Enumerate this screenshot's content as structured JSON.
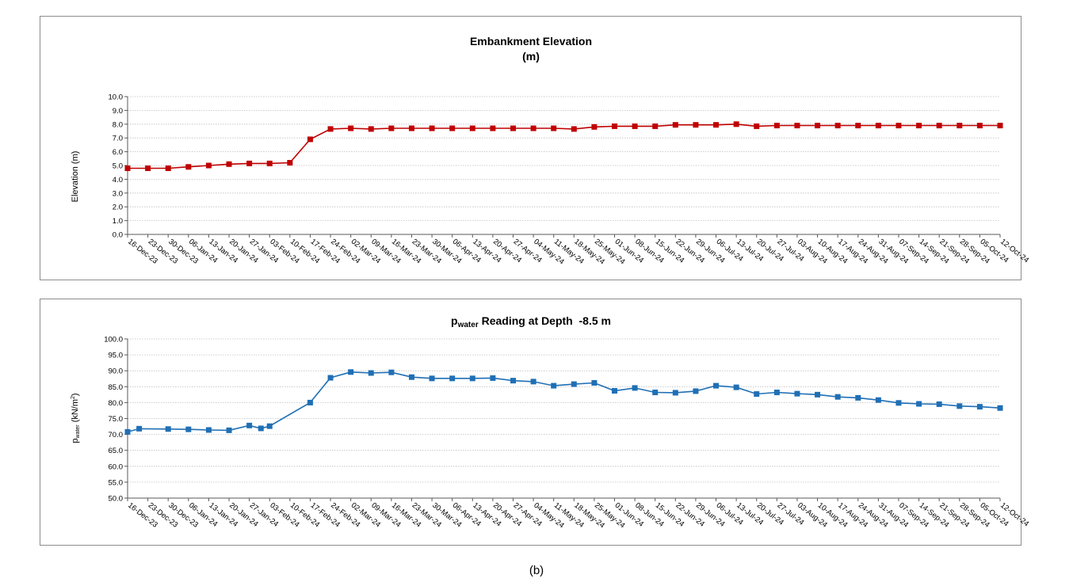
{
  "caption": "(b)",
  "colors": {
    "elevation": "#c00000",
    "pwater": "#1f6fb5",
    "grid": "#bfbfbf",
    "axis": "#595959"
  },
  "chart_data": [
    {
      "type": "line",
      "title_line1": "Embankment Elevation",
      "title_line2": "(m)",
      "ylabel": "Elevation (m)",
      "xlabel": "",
      "ylim": [
        0,
        10
      ],
      "ystep": 1,
      "ydecimals": 1,
      "grid": "horizontal dotted",
      "marker": "square",
      "categories": [
        "16-Dec-23",
        "23-Dec-23",
        "30-Dec-23",
        "06-Jan-24",
        "13-Jan-24",
        "20-Jan-24",
        "27-Jan-24",
        "03-Feb-24",
        "10-Feb-24",
        "17-Feb-24",
        "24-Feb-24",
        "02-Mar-24",
        "09-Mar-24",
        "16-Mar-24",
        "23-Mar-24",
        "30-Mar-24",
        "06-Apr-24",
        "13-Apr-24",
        "20-Apr-24",
        "27-Apr-24",
        "04-May-24",
        "11-May-24",
        "18-May-24",
        "25-May-24",
        "01-Jun-24",
        "08-Jun-24",
        "15-Jun-24",
        "22-Jun-24",
        "29-Jun-24",
        "06-Jul-24",
        "13-Jul-24",
        "20-Jul-24",
        "27-Jul-24",
        "03-Aug-24",
        "10-Aug-24",
        "17-Aug-24",
        "24-Aug-24",
        "31-Aug-24",
        "07-Sep-24",
        "14-Sep-24",
        "21-Sep-24",
        "28-Sep-24",
        "05-Oct-24",
        "12-Oct-24"
      ],
      "points": [
        {
          "x": "16-Dec-23",
          "y": 4.8
        },
        {
          "x": "23-Dec-23",
          "y": 4.8
        },
        {
          "x": "30-Dec-23",
          "y": 4.8
        },
        {
          "x": "06-Jan-24",
          "y": 4.9
        },
        {
          "x": "13-Jan-24",
          "y": 5.0
        },
        {
          "x": "20-Jan-24",
          "y": 5.1
        },
        {
          "x": "27-Jan-24",
          "y": 5.15
        },
        {
          "x": "03-Feb-24",
          "y": 5.15
        },
        {
          "x": "10-Feb-24",
          "y": 5.2
        },
        {
          "x": "17-Feb-24",
          "y": 6.9
        },
        {
          "x": "24-Feb-24",
          "y": 7.65
        },
        {
          "x": "02-Mar-24",
          "y": 7.7
        },
        {
          "x": "09-Mar-24",
          "y": 7.65
        },
        {
          "x": "16-Mar-24",
          "y": 7.7
        },
        {
          "x": "23-Mar-24",
          "y": 7.7
        },
        {
          "x": "30-Mar-24",
          "y": 7.7
        },
        {
          "x": "06-Apr-24",
          "y": 7.7
        },
        {
          "x": "13-Apr-24",
          "y": 7.7
        },
        {
          "x": "20-Apr-24",
          "y": 7.7
        },
        {
          "x": "27-Apr-24",
          "y": 7.7
        },
        {
          "x": "04-May-24",
          "y": 7.7
        },
        {
          "x": "11-May-24",
          "y": 7.7
        },
        {
          "x": "18-May-24",
          "y": 7.65
        },
        {
          "x": "25-May-24",
          "y": 7.8
        },
        {
          "x": "01-Jun-24",
          "y": 7.85
        },
        {
          "x": "08-Jun-24",
          "y": 7.85
        },
        {
          "x": "15-Jun-24",
          "y": 7.85
        },
        {
          "x": "22-Jun-24",
          "y": 7.95
        },
        {
          "x": "29-Jun-24",
          "y": 7.95
        },
        {
          "x": "06-Jul-24",
          "y": 7.95
        },
        {
          "x": "13-Jul-24",
          "y": 8.0
        },
        {
          "x": "20-Jul-24",
          "y": 7.85
        },
        {
          "x": "27-Jul-24",
          "y": 7.9
        },
        {
          "x": "03-Aug-24",
          "y": 7.9
        },
        {
          "x": "10-Aug-24",
          "y": 7.9
        },
        {
          "x": "17-Aug-24",
          "y": 7.9
        },
        {
          "x": "24-Aug-24",
          "y": 7.9
        },
        {
          "x": "31-Aug-24",
          "y": 7.9
        },
        {
          "x": "07-Sep-24",
          "y": 7.9
        },
        {
          "x": "14-Sep-24",
          "y": 7.9
        },
        {
          "x": "21-Sep-24",
          "y": 7.9
        },
        {
          "x": "28-Sep-24",
          "y": 7.9
        },
        {
          "x": "05-Oct-24",
          "y": 7.9
        },
        {
          "x": "12-Oct-24",
          "y": 7.9
        }
      ]
    },
    {
      "type": "line",
      "title_main": "p",
      "title_sub": "water",
      "title_rest": " Reading at Depth  -8.5 m",
      "ylabel_main": "p",
      "ylabel_sub": "water",
      "ylabel_rest": " (kN/m",
      "ylabel_sup": "2",
      "ylabel_end": ")",
      "xlabel": "",
      "ylim": [
        50,
        100
      ],
      "ystep": 5,
      "ydecimals": 1,
      "grid": "horizontal dotted",
      "marker": "square",
      "categories": [
        "16-Dec-23",
        "23-Dec-23",
        "30-Dec-23",
        "06-Jan-24",
        "13-Jan-24",
        "20-Jan-24",
        "27-Jan-24",
        "03-Feb-24",
        "10-Feb-24",
        "17-Feb-24",
        "24-Feb-24",
        "02-Mar-24",
        "09-Mar-24",
        "16-Mar-24",
        "23-Mar-24",
        "30-Mar-24",
        "06-Apr-24",
        "13-Apr-24",
        "20-Apr-24",
        "27-Apr-24",
        "04-May-24",
        "11-May-24",
        "18-May-24",
        "25-May-24",
        "01-Jun-24",
        "08-Jun-24",
        "15-Jun-24",
        "22-Jun-24",
        "29-Jun-24",
        "06-Jul-24",
        "13-Jul-24",
        "20-Jul-24",
        "27-Jul-24",
        "03-Aug-24",
        "10-Aug-24",
        "17-Aug-24",
        "24-Aug-24",
        "31-Aug-24",
        "07-Sep-24",
        "14-Sep-24",
        "21-Sep-24",
        "28-Sep-24",
        "05-Oct-24",
        "12-Oct-24"
      ],
      "points": [
        {
          "x": "16-Dec-23",
          "y": 70.8
        },
        {
          "x": "20-Dec-23",
          "y": 71.8
        },
        {
          "x": "30-Dec-23",
          "y": 71.7
        },
        {
          "x": "06-Jan-24",
          "y": 71.6
        },
        {
          "x": "13-Jan-24",
          "y": 71.4
        },
        {
          "x": "20-Jan-24",
          "y": 71.3
        },
        {
          "x": "27-Jan-24",
          "y": 72.8
        },
        {
          "x": "31-Jan-24",
          "y": 71.9
        },
        {
          "x": "03-Feb-24",
          "y": 72.6
        },
        {
          "x": "17-Feb-24",
          "y": 80.0
        },
        {
          "x": "24-Feb-24",
          "y": 87.8
        },
        {
          "x": "02-Mar-24",
          "y": 89.6
        },
        {
          "x": "09-Mar-24",
          "y": 89.3
        },
        {
          "x": "16-Mar-24",
          "y": 89.5
        },
        {
          "x": "23-Mar-24",
          "y": 88.0
        },
        {
          "x": "30-Mar-24",
          "y": 87.6
        },
        {
          "x": "06-Apr-24",
          "y": 87.6
        },
        {
          "x": "13-Apr-24",
          "y": 87.6
        },
        {
          "x": "20-Apr-24",
          "y": 87.7
        },
        {
          "x": "27-Apr-24",
          "y": 86.9
        },
        {
          "x": "04-May-24",
          "y": 86.6
        },
        {
          "x": "11-May-24",
          "y": 85.3
        },
        {
          "x": "18-May-24",
          "y": 85.8
        },
        {
          "x": "25-May-24",
          "y": 86.2
        },
        {
          "x": "01-Jun-24",
          "y": 83.7
        },
        {
          "x": "08-Jun-24",
          "y": 84.6
        },
        {
          "x": "15-Jun-24",
          "y": 83.2
        },
        {
          "x": "22-Jun-24",
          "y": 83.1
        },
        {
          "x": "29-Jun-24",
          "y": 83.6
        },
        {
          "x": "06-Jul-24",
          "y": 85.3
        },
        {
          "x": "13-Jul-24",
          "y": 84.8
        },
        {
          "x": "20-Jul-24",
          "y": 82.7
        },
        {
          "x": "27-Jul-24",
          "y": 83.2
        },
        {
          "x": "03-Aug-24",
          "y": 82.8
        },
        {
          "x": "10-Aug-24",
          "y": 82.5
        },
        {
          "x": "17-Aug-24",
          "y": 81.8
        },
        {
          "x": "24-Aug-24",
          "y": 81.5
        },
        {
          "x": "31-Aug-24",
          "y": 80.8
        },
        {
          "x": "07-Sep-24",
          "y": 79.9
        },
        {
          "x": "14-Sep-24",
          "y": 79.6
        },
        {
          "x": "21-Sep-24",
          "y": 79.5
        },
        {
          "x": "28-Sep-24",
          "y": 78.9
        },
        {
          "x": "05-Oct-24",
          "y": 78.7
        },
        {
          "x": "12-Oct-24",
          "y": 78.3
        }
      ]
    }
  ]
}
